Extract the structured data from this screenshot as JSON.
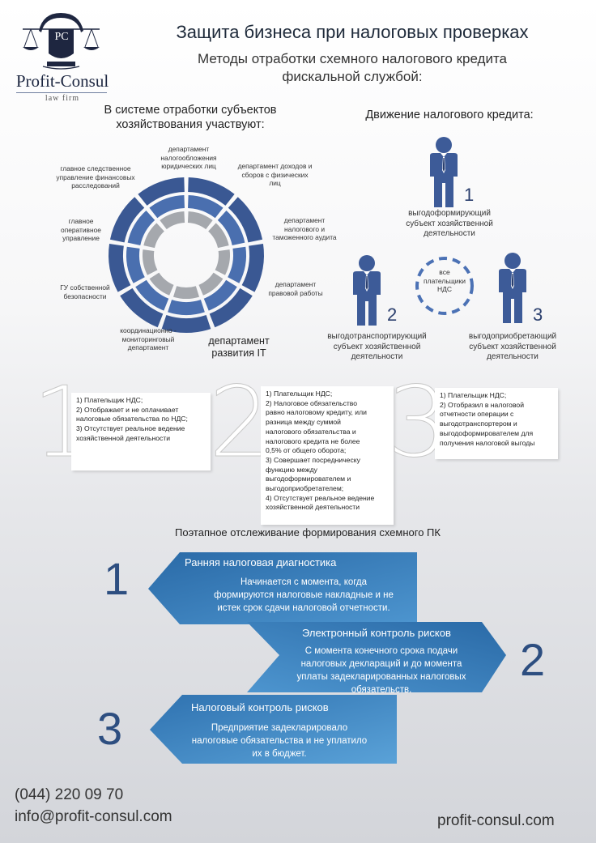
{
  "logo": {
    "initials": "PC",
    "name": "Profit-Consul",
    "subtitle": "law firm"
  },
  "header": {
    "title": "Защита бизнеса при налоговых проверках",
    "subtitle_line1": "Методы отработки схемного налогового кредита",
    "subtitle_line2": "фискальной службой:"
  },
  "left_section": {
    "heading_line1": "В системе отработки субъектов",
    "heading_line2": "хозяйствования участвуют:",
    "departments": [
      {
        "line1": "департамент",
        "line2": "налогообложения",
        "line3": "юридических лиц"
      },
      {
        "line1": "департамент доходов и",
        "line2": "сборов с физических",
        "line3": "лиц"
      },
      {
        "line1": "департамент",
        "line2": "налогового и",
        "line3": "таможенного аудита"
      },
      {
        "line1": "департамент",
        "line2": "правовой работы"
      },
      {
        "line1": "департамент",
        "line2": "развития IT"
      },
      {
        "line1": "координационно -",
        "line2": "мониторинговый",
        "line3": "департамент"
      },
      {
        "line1": "ГУ собственной",
        "line2": "безопасности"
      },
      {
        "line1": "главное",
        "line2": "оперативное",
        "line3": "управление"
      },
      {
        "line1": "главное следственное",
        "line2": "управление финансовых",
        "line3": "расследований"
      }
    ]
  },
  "right_section": {
    "heading": "Движение налогового кредита:",
    "center_label_line1": "все",
    "center_label_line2": "плательщики",
    "center_label_line3": "НДС",
    "persons": [
      {
        "number": "1",
        "line1": "выгодоформирующий",
        "line2": "субъект хозяйственной",
        "line3": "деятельности"
      },
      {
        "number": "2",
        "line1": "выгодотранспортирующий",
        "line2": "субъект хозяйственной",
        "line3": "деятельности"
      },
      {
        "number": "3",
        "line1": "выгодоприобретающий",
        "line2": "субъект хозяйственной",
        "line3": "деятельности"
      }
    ]
  },
  "criteria": [
    {
      "number": "1",
      "lines": [
        "1) Плательщик НДС;",
        "2) Отображает и не оплачивает",
        "налоговые обязательства по НДС;",
        "3) Отсутствует реальное ведение",
        "хозяйственной деятельности"
      ]
    },
    {
      "number": "2",
      "lines": [
        "1) Плательщик НДС;",
        "2) Налоговое обязательство",
        "равно налоговому кредиту, или",
        "разница между суммой",
        "налогового обязательства и",
        "налогового кредита не более",
        "0,5% от общего оборота;",
        "3) Совершает посредническу",
        "функцию между",
        "выгодоформирователем и",
        "выгодоприобретателем;",
        "4) Отсутствует реальное ведение",
        "хозяйственной деятельности"
      ]
    },
    {
      "number": "3",
      "lines": [
        "1) Плательщик НДС;",
        "2) Отобразил в налоговой",
        "отчетности операции с",
        "выгодотранспортером и",
        "выгодоформирователем для",
        "получения налоговой выгоды"
      ]
    }
  ],
  "tracking": {
    "heading": "Поэтапное отслеживание формирования схемного ПК",
    "steps": [
      {
        "number": "1",
        "title": "Ранняя налоговая диагностика",
        "lines": [
          "Начинается с момента, когда",
          "формируются налоговые накладные и не",
          "истек срок сдачи налоговой отчетности."
        ]
      },
      {
        "number": "2",
        "title": "Электронный контроль рисков",
        "lines": [
          "С момента конечного срока подачи",
          "налоговых деклараций и до момента",
          "уплаты задекларированных налоговых",
          "обязательств."
        ]
      },
      {
        "number": "3",
        "title": "Налоговый контроль рисков",
        "lines": [
          "Предприятие задекларировало",
          "налоговые обязательства и не уплатило",
          "их в бюджет."
        ]
      }
    ]
  },
  "contacts": {
    "phone": "(044) 220 09 70",
    "email": "info@profit-consul.com",
    "website": "profit-consul.com"
  },
  "colors": {
    "dark_blue": "#3a5893",
    "mid_blue": "#4a6faf",
    "light_blue": "#5aa0d4",
    "gray": "#a5a8ad",
    "arrow_dark": "#2d6ca8",
    "arrow_light": "#5fa5d8"
  }
}
